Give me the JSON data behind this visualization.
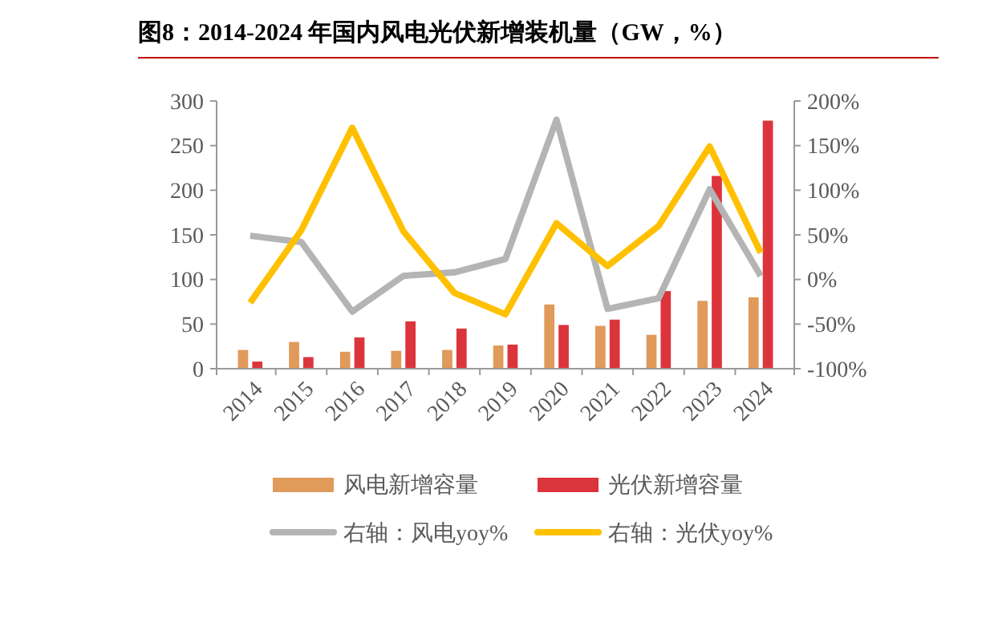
{
  "chart_data": {
    "type": "bar",
    "title": "图8：2014-2024 年国内风电光伏新增装机量（GW，%）",
    "categories": [
      "2014",
      "2015",
      "2016",
      "2017",
      "2018",
      "2019",
      "2020",
      "2021",
      "2022",
      "2023",
      "2024"
    ],
    "series": [
      {
        "name": "风电新增容量",
        "color": "#e09a5a",
        "values": [
          21,
          30,
          19,
          20,
          21,
          26,
          72,
          48,
          38,
          76,
          80
        ]
      },
      {
        "name": "光伏新增容量",
        "color": "#dc343b",
        "values": [
          8,
          13,
          35,
          53,
          45,
          27,
          49,
          55,
          87,
          216,
          278
        ]
      },
      {
        "name": "右轴：风电yoy%",
        "type": "line",
        "axis": "y2",
        "color": "#b4b4b4",
        "values": [
          49,
          42,
          -36,
          4,
          8,
          23,
          179,
          -33,
          -21,
          101,
          4
        ]
      },
      {
        "name": "右轴：光伏yoy%",
        "type": "line",
        "axis": "y2",
        "color": "#ffc000",
        "values": [
          -26,
          55,
          170,
          54,
          -15,
          -39,
          63,
          15,
          60,
          149,
          30
        ]
      }
    ],
    "ylim": [
      0,
      300
    ],
    "yticks": [
      0,
      50,
      100,
      150,
      200,
      250,
      300
    ],
    "y2lim": [
      -100,
      200
    ],
    "y2ticks": [
      {
        "value": -100,
        "label": "-100%"
      },
      {
        "value": -50,
        "label": "-50%"
      },
      {
        "value": 0,
        "label": "0%"
      },
      {
        "value": 50,
        "label": "50%"
      },
      {
        "value": 100,
        "label": "100%"
      },
      {
        "value": 150,
        "label": "150%"
      },
      {
        "value": 200,
        "label": "200%"
      }
    ],
    "grid": false,
    "legend": "bottom",
    "marker": "none",
    "line_style": "solid"
  }
}
